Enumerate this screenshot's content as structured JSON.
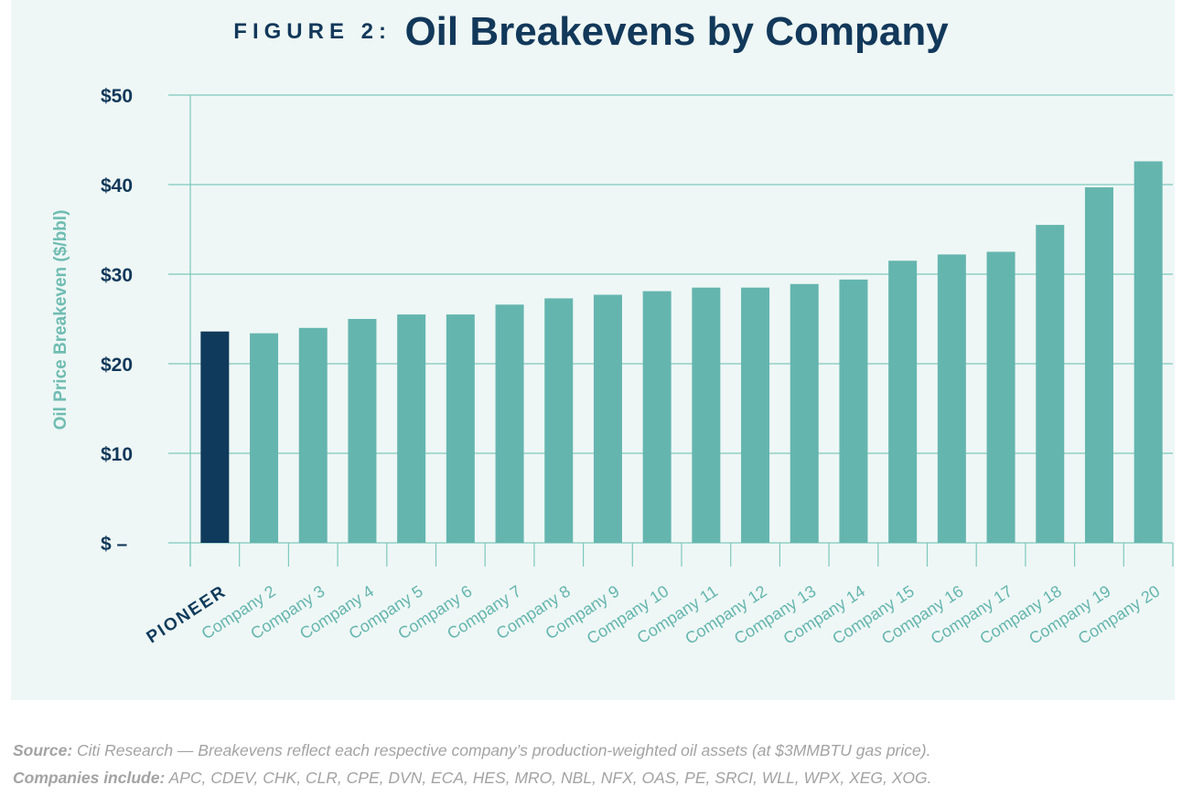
{
  "title": {
    "prefix": "FIGURE 2:",
    "main": "Oil Breakevens by Company"
  },
  "colors": {
    "highlight": "#0f3a5b",
    "bar": "#65b5af",
    "grid": "#7fc8bd",
    "axis_text": "#12385a",
    "ylabel": "#6fbcb2",
    "background": "#eef7f5"
  },
  "chart_data": {
    "type": "bar",
    "title": "Oil Breakevens by Company",
    "xlabel": "",
    "ylabel": "Oil Price Breakeven ($/bbl)",
    "ylim": [
      0,
      50
    ],
    "yticks": [
      {
        "value": 0,
        "label": "$ –"
      },
      {
        "value": 10,
        "label": "$10"
      },
      {
        "value": 20,
        "label": "$20"
      },
      {
        "value": 30,
        "label": "$30"
      },
      {
        "value": 40,
        "label": "$40"
      },
      {
        "value": 50,
        "label": "$50"
      }
    ],
    "grid": true,
    "highlight_category": "PIONEER",
    "categories": [
      "PIONEER",
      "Company 2",
      "Company 3",
      "Company 4",
      "Company 5",
      "Company 6",
      "Company 7",
      "Company 8",
      "Company 9",
      "Company 10",
      "Company 11",
      "Company 12",
      "Company 13",
      "Company 14",
      "Company 15",
      "Company 16",
      "Company 17",
      "Company 18",
      "Company 19",
      "Company 20"
    ],
    "values": [
      23.6,
      23.4,
      24.0,
      25.0,
      25.5,
      25.5,
      26.6,
      27.3,
      27.7,
      28.1,
      28.5,
      28.5,
      28.9,
      29.4,
      31.5,
      32.2,
      32.5,
      35.5,
      39.7,
      42.6
    ]
  },
  "footer": {
    "source_label": "Source:",
    "source_text": "Citi Research — Breakevens reflect each respective company’s production-weighted oil assets (at $3MMBTU gas price).",
    "companies_label": "Companies include:",
    "companies_text": "APC, CDEV, CHK, CLR, CPE, DVN, ECA, HES, MRO, NBL, NFX, OAS, PE, SRCI, WLL, WPX, XEG, XOG."
  }
}
